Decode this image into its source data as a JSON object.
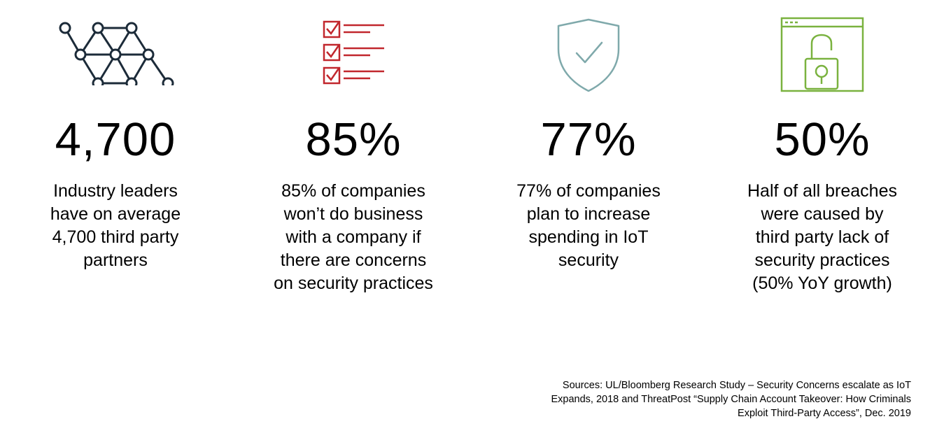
{
  "colors": {
    "network_icon": "#1c2b39",
    "checklist_icon": "#c1272d",
    "shield_icon": "#7fa9ab",
    "lock_icon": "#7ab23f",
    "text": "#000000"
  },
  "stats": [
    {
      "icon": "network-icon",
      "value": "4,700",
      "description_lines": [
        "Industry leaders",
        "have on average",
        "4,700 third party",
        "partners"
      ]
    },
    {
      "icon": "checklist-icon",
      "value": "85%",
      "description_lines": [
        "85% of companies",
        "won’t do business",
        "with a company if",
        "there are concerns",
        "on security practices"
      ]
    },
    {
      "icon": "shield-check-icon",
      "value": "77%",
      "description_lines": [
        "77% of companies",
        "plan to increase",
        "spending in IoT",
        "security"
      ]
    },
    {
      "icon": "browser-lock-icon",
      "value": "50%",
      "description_lines": [
        "Half of all breaches",
        "were caused by",
        "third party lack of",
        "security practices",
        "(50% YoY growth)"
      ]
    }
  ],
  "sources": {
    "lines": [
      "Sources: UL/Bloomberg Research Study – Security Concerns escalate as IoT",
      "Expands, 2018 and ThreatPost “Supply Chain Account Takeover: How Criminals",
      "Exploit Third-Party Access”, Dec. 2019"
    ]
  }
}
